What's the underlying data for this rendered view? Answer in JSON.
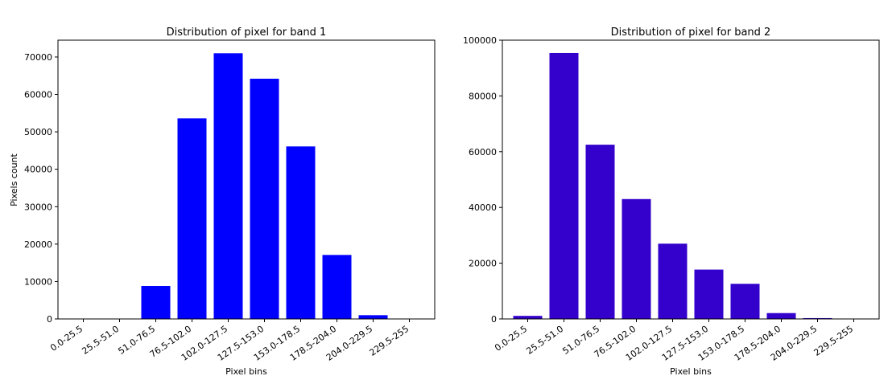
{
  "chart_data": [
    {
      "type": "bar",
      "title": "Distribution of pixel for band 1",
      "xlabel": "Pixel bins",
      "ylabel": "Pixels count",
      "categories": [
        "0.0-25.5",
        "25.5-51.0",
        "51.0-76.5",
        "76.5-102.0",
        "102.0-127.5",
        "127.5-153.0",
        "153.0-178.5",
        "178.5-204.0",
        "204.0-229.5",
        "229.5-255"
      ],
      "values": [
        0,
        0,
        8800,
        53600,
        71000,
        64200,
        46100,
        17100,
        1000,
        0
      ],
      "ylim": [
        0,
        74500
      ],
      "yticks": [
        0,
        10000,
        20000,
        30000,
        40000,
        50000,
        60000,
        70000
      ],
      "color": "#0000ff",
      "grid": false
    },
    {
      "type": "bar",
      "title": "Distribution of pixel for band 2",
      "xlabel": "Pixel bins",
      "ylabel": "",
      "categories": [
        "0.0-25.5",
        "25.5-51.0",
        "51.0-76.5",
        "76.5-102.0",
        "102.0-127.5",
        "127.5-153.0",
        "153.0-178.5",
        "178.5-204.0",
        "204.0-229.5",
        "229.5-255"
      ],
      "values": [
        1100,
        95400,
        62500,
        43000,
        27000,
        17700,
        12600,
        2100,
        300,
        0
      ],
      "ylim": [
        0,
        100000
      ],
      "yticks": [
        0,
        20000,
        40000,
        60000,
        80000,
        100000
      ],
      "color": "#3300cc",
      "grid": false
    }
  ]
}
